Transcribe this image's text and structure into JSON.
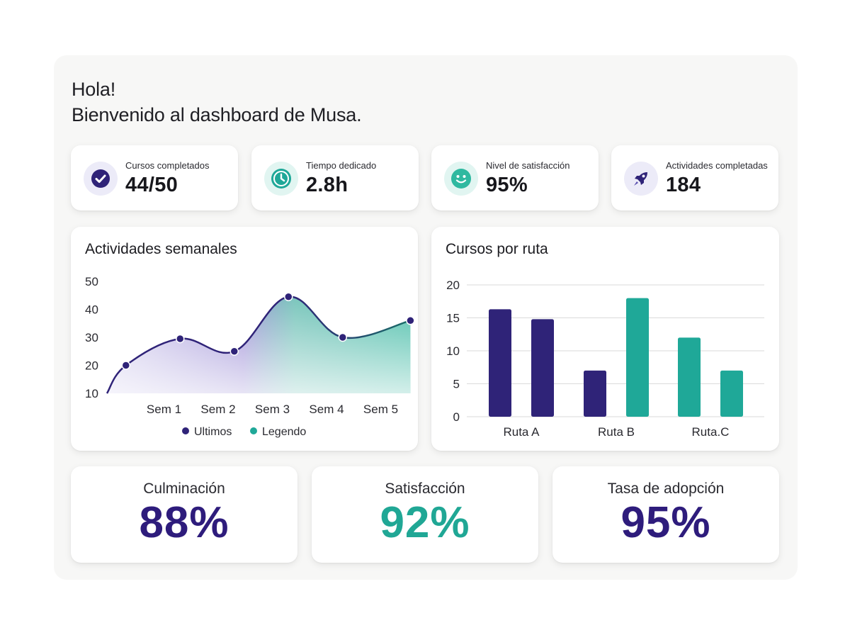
{
  "greeting": {
    "line1": "Hola!",
    "line2": "Bienvenido al dashboard de Musa."
  },
  "stats": [
    {
      "label": "Cursos completados",
      "value": "44/50",
      "icon": "check-icon"
    },
    {
      "label": "Tiempo dedicado",
      "value": "2.8h",
      "icon": "clock-icon"
    },
    {
      "label": "Nivel de satisfacción",
      "value": "95%",
      "icon": "smiley-icon"
    },
    {
      "label": "Actividades completadas",
      "value": "184",
      "icon": "rocket-icon"
    }
  ],
  "colors": {
    "purple": "#2f2378",
    "teal": "#1fa898",
    "purple_light": "#ecebf8",
    "teal_light": "#e1f5f1"
  },
  "chart_data": [
    {
      "type": "area",
      "title": "Actividades semanales",
      "x_ticks": [
        "Sem 1",
        "Sem 2",
        "Sem 3",
        "Sem 4",
        "Sem 5"
      ],
      "y_ticks": [
        "10",
        "20",
        "30",
        "40",
        "50"
      ],
      "ylim": [
        10,
        50
      ],
      "points": [
        {
          "x": 0,
          "y": 10
        },
        {
          "x": 0.35,
          "y": 20
        },
        {
          "x": 1.35,
          "y": 29.5
        },
        {
          "x": 2.35,
          "y": 25
        },
        {
          "x": 3.35,
          "y": 44.5
        },
        {
          "x": 4.35,
          "y": 30
        },
        {
          "x": 5.6,
          "y": 36
        }
      ],
      "legend": [
        "Ultimos",
        "Legendo"
      ]
    },
    {
      "type": "bar",
      "title": "Cursos por ruta",
      "categories": [
        "Ruta A",
        "Ruta B",
        "Ruta.C"
      ],
      "y_ticks": [
        "0",
        "5",
        "10",
        "15",
        "20"
      ],
      "ylim": [
        0,
        20
      ],
      "bars": [
        {
          "category": "Ruta A",
          "value": 16.3,
          "color": "purple"
        },
        {
          "category": "Ruta A",
          "value": 14.8,
          "color": "purple"
        },
        {
          "category": "Ruta B",
          "value": 7,
          "color": "purple"
        },
        {
          "category": "Ruta B",
          "value": 18,
          "color": "teal"
        },
        {
          "category": "Ruta.C",
          "value": 12,
          "color": "teal"
        },
        {
          "category": "Ruta.C",
          "value": 7,
          "color": "teal"
        }
      ]
    }
  ],
  "kpis": [
    {
      "label": "Culminación",
      "value": "88%",
      "color": "#2e1c7c"
    },
    {
      "label": "Satisfacción",
      "value": "92%",
      "color": "#20a795"
    },
    {
      "label": "Tasa de adopción",
      "value": "95%",
      "color": "#2e1c7c"
    }
  ]
}
